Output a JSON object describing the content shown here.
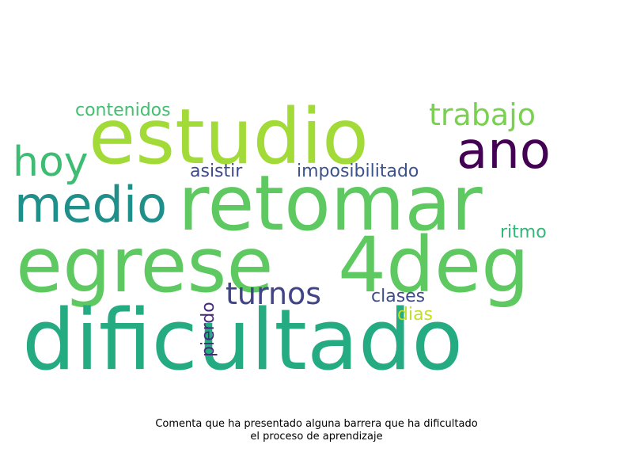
{
  "words": [
    {
      "text": "estudio",
      "color": "#a2da37"
    },
    {
      "text": "retomar",
      "color": "#5ec961"
    },
    {
      "text": "egrese",
      "color": "#5ec961"
    },
    {
      "text": "4deg",
      "color": "#5ec961"
    },
    {
      "text": "dificultado",
      "color": "#25ab82"
    },
    {
      "text": "medio",
      "color": "#1f8f8a"
    },
    {
      "text": "ano",
      "color": "#440154"
    },
    {
      "text": "hoy",
      "color": "#3fbc73"
    },
    {
      "text": "trabajo",
      "color": "#7ad151"
    },
    {
      "text": "contenidos",
      "color": "#44bf70"
    },
    {
      "text": "asistir",
      "color": "#3e4a89"
    },
    {
      "text": "imposibilitado",
      "color": "#3b528b"
    },
    {
      "text": "turnos",
      "color": "#414487"
    },
    {
      "text": "ritmo",
      "color": "#35b779"
    },
    {
      "text": "clases",
      "color": "#3e4c8a"
    },
    {
      "text": "dias",
      "color": "#c2df23"
    },
    {
      "text": "pierdo",
      "color": "#482878"
    }
  ],
  "caption": {
    "line1": "Comenta que ha presentado alguna barrera que ha dificultado",
    "line2": "el proceso de aprendizaje"
  }
}
